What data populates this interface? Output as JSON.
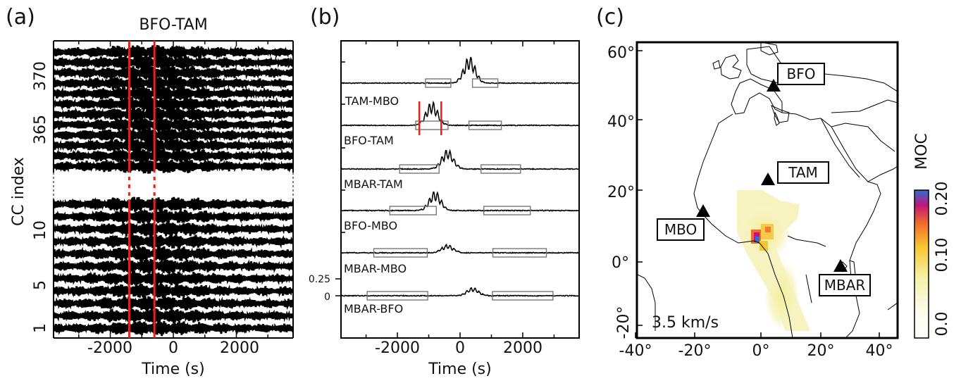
{
  "panels": {
    "a": {
      "label": "(a)",
      "title": "BFO-TAM",
      "ylabel": "CC index",
      "xlabel": "Time (s)",
      "xticks": [
        "-2000",
        "0",
        "2000"
      ],
      "yticks": [
        "1",
        "5",
        "10",
        "365",
        "370"
      ],
      "xlim": [
        -3800,
        3800
      ]
    },
    "b": {
      "label": "(b)",
      "xlabel": "Time (s)",
      "xticks": [
        "-2000",
        "0",
        "2000"
      ],
      "scale_labels": [
        "0.25",
        "0"
      ],
      "traces": [
        "TAM-MBO",
        "BFO-TAM",
        "MBAR-TAM",
        "BFO-MBO",
        "MBAR-MBO",
        "MBAR-BFO"
      ],
      "xlim": [
        -3800,
        3800
      ]
    },
    "c": {
      "label": "(c)",
      "speed_label": "3.5 km/s",
      "colorbar_label": "MOC",
      "colorbar_ticks": [
        "0.0",
        "0.10",
        "0.20"
      ],
      "lon_ticks": [
        "-40°",
        "-20°",
        "0°",
        "20°",
        "40°"
      ],
      "lat_ticks": [
        "-20°",
        "0°",
        "20°",
        "40°",
        "60°"
      ],
      "stations": [
        "BFO",
        "TAM",
        "MBO",
        "MBAR"
      ]
    }
  },
  "chart_data": [
    {
      "type": "line",
      "title": "BFO-TAM",
      "xlabel": "Time (s)",
      "ylabel": "CC index",
      "xlim": [
        -3800,
        3800
      ],
      "y_index_lower": [
        1,
        2,
        3,
        4,
        5,
        6,
        7,
        8,
        9,
        10,
        11
      ],
      "y_index_upper": [
        361,
        362,
        363,
        364,
        365,
        366,
        367,
        368,
        369,
        370,
        371,
        372
      ],
      "markers_x": [
        -1400,
        -600
      ]
    },
    {
      "type": "line",
      "xlabel": "Time (s)",
      "xlim": [
        -3800,
        3800
      ],
      "series": [
        {
          "name": "TAM-MBO",
          "peak_time": 300,
          "box_times": [
            -700,
            800
          ]
        },
        {
          "name": "BFO-TAM",
          "peak_time": -900,
          "box_times": [
            -900,
            800
          ],
          "markers_x": [
            -1300,
            -600
          ]
        },
        {
          "name": "MBAR-TAM",
          "peak_time": -400,
          "box_times": [
            -1300,
            1300
          ]
        },
        {
          "name": "BFO-MBO",
          "peak_time": -800,
          "box_times": [
            -1500,
            1500
          ]
        },
        {
          "name": "MBAR-MBO",
          "peak_time": -400,
          "box_times": [
            -1900,
            1900
          ]
        },
        {
          "name": "MBAR-BFO",
          "peak_time": 400,
          "box_times": [
            -2000,
            2000
          ]
        }
      ],
      "scale": {
        "ticks": [
          0.25,
          0
        ]
      }
    },
    {
      "type": "heatmap",
      "speed": "3.5 km/s",
      "xlim": [
        -40,
        47
      ],
      "ylim": [
        -22,
        63
      ],
      "colorbar": {
        "label": "MOC",
        "range": [
          0.0,
          0.2
        ]
      },
      "stations": [
        {
          "name": "BFO",
          "lon": 8,
          "lat": 48
        },
        {
          "name": "TAM",
          "lon": 5.5,
          "lat": 22.8
        },
        {
          "name": "MBO",
          "lon": -17,
          "lat": 14.4
        },
        {
          "name": "MBAR",
          "lon": 30.7,
          "lat": -0.6
        }
      ],
      "hotspot": {
        "lon": -1,
        "lat": 5.5,
        "value": 0.2
      }
    }
  ]
}
